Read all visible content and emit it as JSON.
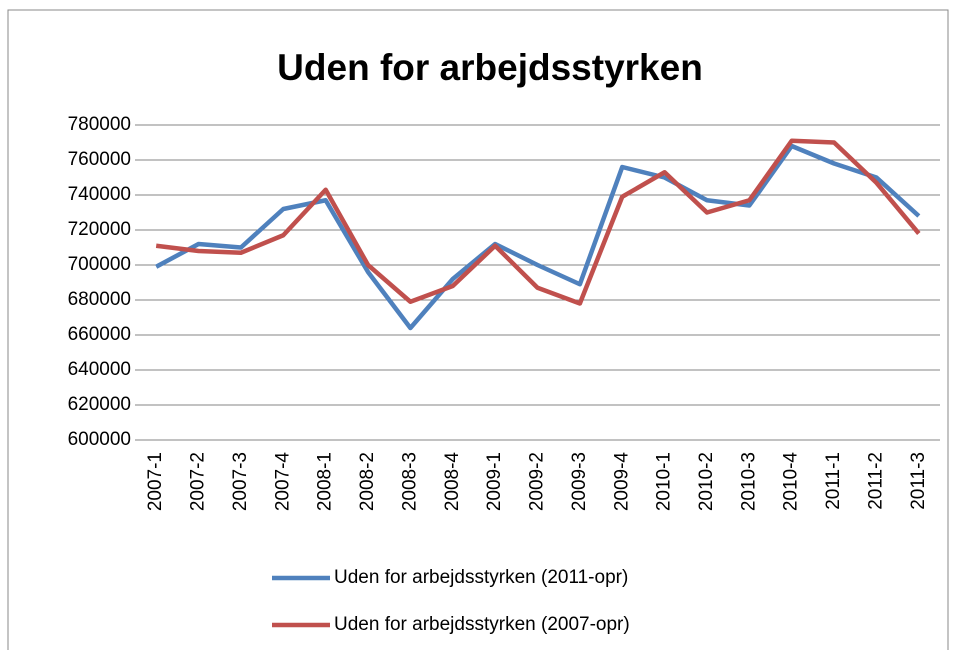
{
  "chart_data": {
    "type": "line",
    "title": "Uden for arbejdsstyrken",
    "categories": [
      "2007-1",
      "2007-2",
      "2007-3",
      "2007-4",
      "2008-1",
      "2008-2",
      "2008-3",
      "2008-4",
      "2009-1",
      "2009-2",
      "2009-3",
      "2009-4",
      "2010-1",
      "2010-2",
      "2010-3",
      "2010-4",
      "2011-1",
      "2011-2",
      "2011-3"
    ],
    "series": [
      {
        "name": "Uden for arbejdsstyrken (2011-opr)",
        "color": "#4f81bd",
        "values": [
          699000,
          712000,
          710000,
          732000,
          737000,
          696000,
          664000,
          692000,
          712000,
          700000,
          689000,
          756000,
          750000,
          737000,
          734000,
          768000,
          758000,
          750000,
          728000
        ]
      },
      {
        "name": "Uden for arbejdsstyrken (2007-opr)",
        "color": "#c0504d",
        "values": [
          711000,
          708000,
          707000,
          717000,
          743000,
          700000,
          679000,
          688000,
          711000,
          687000,
          678000,
          739000,
          753000,
          730000,
          737000,
          771000,
          770000,
          747000,
          718000
        ]
      }
    ],
    "ylim": [
      600000,
      780000
    ],
    "yticks": [
      600000,
      620000,
      640000,
      660000,
      680000,
      700000,
      720000,
      740000,
      760000,
      780000
    ],
    "grid": true,
    "legend": "bottom"
  }
}
